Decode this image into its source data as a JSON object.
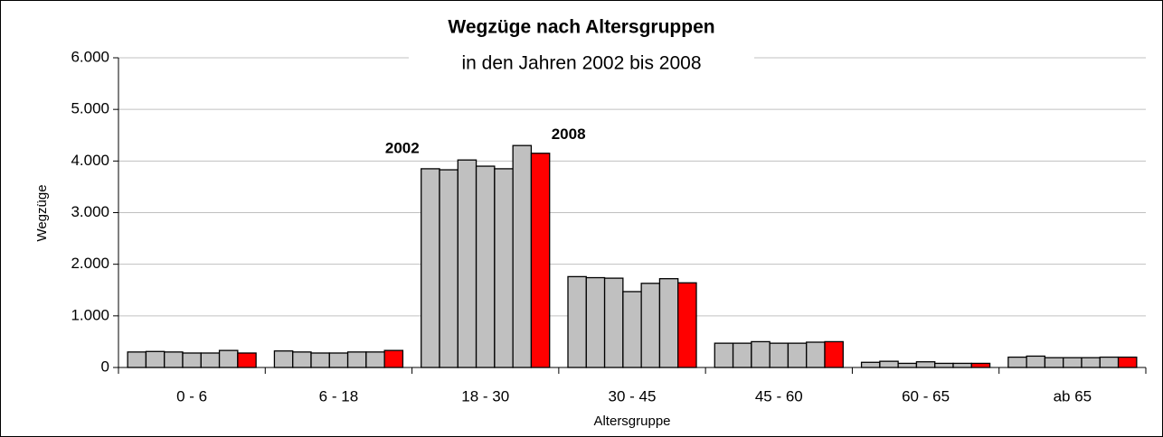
{
  "chart_data": {
    "type": "bar",
    "title": "Wegzüge nach Altersgruppen",
    "subtitle": "in den Jahren 2002 bis 2008",
    "x_label": "Altersgruppe",
    "y_label": "Wegzüge",
    "categories": [
      "0 - 6",
      "6 - 18",
      "18 - 30",
      "30 - 45",
      "45 - 60",
      "60 - 65",
      "ab 65"
    ],
    "series": [
      {
        "color": "#c0c0c0",
        "values": [
          300,
          320,
          3850,
          1760,
          470,
          100,
          200
        ]
      },
      {
        "color": "#c0c0c0",
        "values": [
          310,
          300,
          3830,
          1740,
          470,
          120,
          220
        ]
      },
      {
        "color": "#c0c0c0",
        "values": [
          300,
          280,
          4020,
          1730,
          500,
          80,
          190
        ]
      },
      {
        "color": "#c0c0c0",
        "values": [
          280,
          280,
          3900,
          1470,
          470,
          110,
          190
        ]
      },
      {
        "color": "#c0c0c0",
        "values": [
          280,
          300,
          3850,
          1630,
          470,
          80,
          190
        ]
      },
      {
        "color": "#c0c0c0",
        "values": [
          330,
          300,
          4300,
          1720,
          490,
          80,
          200
        ]
      },
      {
        "color": "#ff0000",
        "values": [
          280,
          330,
          4150,
          1640,
          500,
          80,
          200
        ]
      }
    ],
    "annotations": [
      "2002",
      "2008"
    ],
    "ylim": [
      0,
      6000
    ],
    "yticks": [
      0,
      {
        "value": 1000,
        "label": "1.000"
      },
      {
        "value": 2000,
        "label": "2.000"
      },
      {
        "value": 3000,
        "label": "3.000"
      },
      {
        "value": 4000,
        "label": "4.000"
      },
      {
        "value": 5000,
        "label": "5.000"
      },
      {
        "value": 6000,
        "label": "6.000"
      }
    ],
    "grid": true
  }
}
